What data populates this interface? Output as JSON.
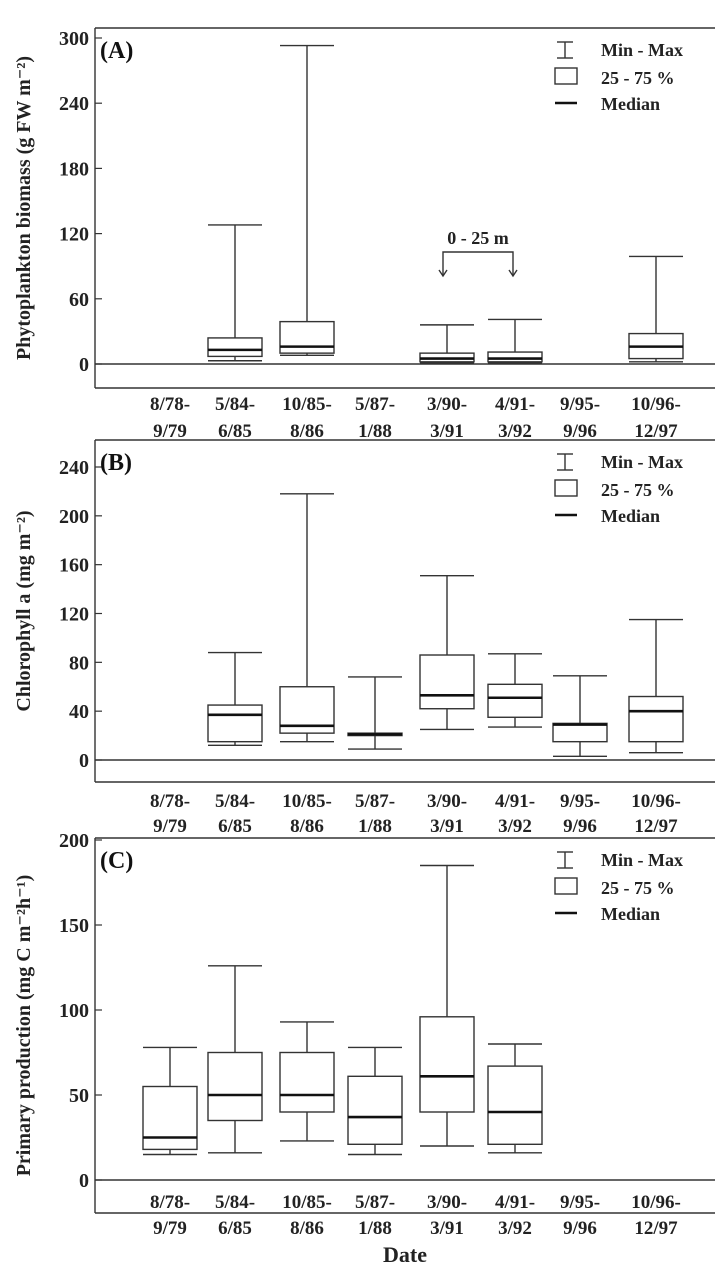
{
  "chart_data": [
    {
      "type": "box",
      "panel_label": "(A)",
      "ylabel": "Phytoplankton biomass (g FW m⁻²)",
      "ylim": [
        -20,
        305
      ],
      "yticks": [
        0,
        60,
        120,
        180,
        240,
        300
      ],
      "categories": [
        "8/78-\n9/79",
        "5/84-\n6/85",
        "10/85-\n8/86",
        "5/87-\n1/88",
        "3/90-\n3/91",
        "4/91-\n3/92",
        "9/95-\n9/96",
        "10/96-\n12/97"
      ],
      "boxes": [
        null,
        {
          "min": 3,
          "q1": 7,
          "median": 13,
          "q3": 24,
          "max": 128
        },
        {
          "min": 8,
          "q1": 10,
          "median": 16,
          "q3": 39,
          "max": 293
        },
        null,
        {
          "min": 1,
          "q1": 2,
          "median": 5,
          "q3": 10,
          "max": 36
        },
        {
          "min": 1,
          "q1": 2,
          "median": 5,
          "q3": 11,
          "max": 41
        },
        null,
        {
          "min": 2,
          "q1": 5,
          "median": 16,
          "q3": 28,
          "max": 99
        }
      ],
      "annotation": {
        "text": "0 - 25 m",
        "from_category": 4,
        "to_category": 5
      },
      "legend": [
        "Min - Max",
        "25 - 75 %",
        "Median"
      ],
      "grid": false,
      "legend_position": "top-right"
    },
    {
      "type": "box",
      "panel_label": "(B)",
      "ylabel": "Chlorophyll a (mg m⁻²)",
      "ylim": [
        -15,
        255
      ],
      "yticks": [
        0,
        40,
        80,
        120,
        160,
        200,
        240
      ],
      "categories": [
        "8/78-\n9/79",
        "5/84-\n6/85",
        "10/85-\n8/86",
        "5/87-\n1/88",
        "3/90-\n3/91",
        "4/91-\n3/92",
        "9/95-\n9/96",
        "10/96-\n12/97"
      ],
      "boxes": [
        null,
        {
          "min": 12,
          "q1": 15,
          "median": 37,
          "q3": 45,
          "max": 88
        },
        {
          "min": 15,
          "q1": 22,
          "median": 28,
          "q3": 60,
          "max": 218
        },
        {
          "min": 9,
          "q1": 20,
          "median": 21,
          "q3": 22,
          "max": 68
        },
        {
          "min": 25,
          "q1": 42,
          "median": 53,
          "q3": 86,
          "max": 151
        },
        {
          "min": 27,
          "q1": 35,
          "median": 51,
          "q3": 62,
          "max": 87
        },
        {
          "min": 3,
          "q1": 15,
          "median": 29,
          "q3": 30,
          "max": 69
        },
        {
          "min": 6,
          "q1": 15,
          "median": 40,
          "q3": 52,
          "max": 115
        }
      ],
      "legend": [
        "Min - Max",
        "25 - 75 %",
        "Median"
      ],
      "grid": false,
      "legend_position": "top-right"
    },
    {
      "type": "box",
      "panel_label": "(C)",
      "ylabel": "Primary production (mg C m⁻²h⁻¹)",
      "ylim": [
        -18,
        200
      ],
      "yticks": [
        0,
        50,
        100,
        150,
        200
      ],
      "categories": [
        "8/78-\n9/79",
        "5/84-\n6/85",
        "10/85-\n8/86",
        "5/87-\n1/88",
        "3/90-\n3/91",
        "4/91-\n3/92",
        "9/95-\n9/96",
        "10/96-\n12/97"
      ],
      "boxes": [
        {
          "min": 15,
          "q1": 18,
          "median": 25,
          "q3": 55,
          "max": 78
        },
        {
          "min": 16,
          "q1": 35,
          "median": 50,
          "q3": 75,
          "max": 126
        },
        {
          "min": 23,
          "q1": 40,
          "median": 50,
          "q3": 75,
          "max": 93
        },
        {
          "min": 15,
          "q1": 21,
          "median": 37,
          "q3": 61,
          "max": 78
        },
        {
          "min": 20,
          "q1": 40,
          "median": 61,
          "q3": 96,
          "max": 185
        },
        {
          "min": 16,
          "q1": 21,
          "median": 40,
          "q3": 67,
          "max": 80
        },
        null,
        null
      ],
      "xlabel": "Date",
      "legend": [
        "Min - Max",
        "25 - 75 %",
        "Median"
      ],
      "grid": false,
      "legend_position": "top-right"
    }
  ]
}
